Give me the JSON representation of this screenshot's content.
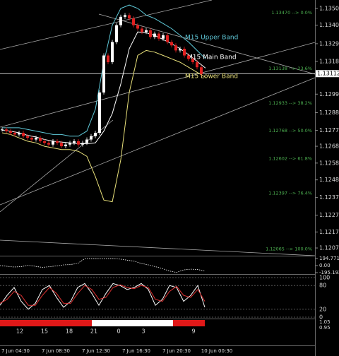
{
  "chart_data": [
    {
      "type": "candlestick",
      "values": [
        1.1278,
        1.1277,
        1.1276,
        1.1275,
        1.1276,
        1.1274,
        1.1273,
        1.1272,
        1.1273,
        1.1271,
        1.127,
        1.1269,
        1.1271,
        1.127,
        1.1268,
        1.1269,
        1.127,
        1.1271,
        1.1269,
        1.127,
        1.1272,
        1.1274,
        1.1276,
        1.13,
        1.1322,
        1.1318,
        1.133,
        1.134,
        1.1345,
        1.1346,
        1.1344,
        1.134,
        1.1338,
        1.1336,
        1.1337,
        1.1333,
        1.1335,
        1.1332,
        1.1334,
        1.133,
        1.1328,
        1.1325,
        1.1326,
        1.1322,
        1.132,
        1.1318,
        1.1315,
        1.1311
      ],
      "series": [
        {
          "name": "M15 Upper Band",
          "color": "#5fc8d8",
          "values": [
            1.1279,
            1.1279,
            1.1279,
            1.1278,
            1.1277,
            1.1276,
            1.1275,
            1.1275,
            1.1274,
            1.1274,
            1.1277,
            1.129,
            1.1318,
            1.134,
            1.135,
            1.1352,
            1.135,
            1.1346,
            1.1344,
            1.1341,
            1.1338,
            1.1334,
            1.133,
            1.1325,
            1.132
          ]
        },
        {
          "name": "M15 Main Band",
          "color": "#ffffff",
          "values": [
            1.12775,
            1.1277,
            1.1276,
            1.12745,
            1.12735,
            1.1272,
            1.1271,
            1.12705,
            1.127,
            1.12695,
            1.12695,
            1.127,
            1.1277,
            1.12875,
            1.1305,
            1.1326,
            1.1336,
            1.13355,
            1.1334,
            1.13315,
            1.1329,
            1.1326,
            1.13225,
            1.13185,
            1.13145
          ]
        },
        {
          "name": "M15 Lower Band",
          "color": "#e8e07a",
          "values": [
            1.1276,
            1.1275,
            1.1273,
            1.1271,
            1.127,
            1.1268,
            1.1267,
            1.1266,
            1.1266,
            1.1265,
            1.1262,
            1.125,
            1.1236,
            1.1235,
            1.126,
            1.13,
            1.1322,
            1.1325,
            1.1324,
            1.1322,
            1.132,
            1.1318,
            1.1315,
            1.1312,
            1.1309
          ]
        }
      ],
      "ylim": [
        1.12029,
        1.1355
      ],
      "yticks": [
        {
          "value": 1.135,
          "label": "1.13500"
        },
        {
          "value": 1.134,
          "label": "1.13400"
        },
        {
          "value": 1.1329,
          "label": "1.13290"
        },
        1.13185,
        {
          "value": 1.1299,
          "label": "1.12990"
        },
        {
          "value": 1.1288,
          "label": "1.12880"
        },
        1.12775,
        {
          "value": 1.1268,
          "label": "1.12680"
        },
        {
          "value": 1.1258,
          "label": "1.12580"
        },
        {
          "value": 1.1248,
          "label": "1.12480"
        },
        1.12375,
        {
          "value": 1.1227,
          "label": "1.12270"
        },
        {
          "value": 1.1217,
          "label": "1.12170"
        },
        1.12075
      ],
      "current_price": 1.13112,
      "fib_levels": [
        {
          "value": 1.1347,
          "label": "1.13470 --> 0.0%"
        },
        {
          "value": 1.13138,
          "label": "1.13138 --> 23.6%"
        },
        {
          "value": 1.12933,
          "label": "1.12933 --> 38.2%"
        },
        {
          "value": 1.12768,
          "label": "1.12768 --> 50.0%"
        },
        {
          "value": 1.12602,
          "label": "1.12602 --> 61.8%"
        },
        {
          "value": 1.12397,
          "label": "1.12397 --> 76.4%"
        },
        {
          "value": 1.12065,
          "label": "1.12065 --> 100.0%"
        }
      ],
      "x_labels": [
        "7 Jun 04:30",
        "7 Jun 08:30",
        "7 Jun 12:30",
        "7 Jun 16:30",
        "7 Jun 20:30",
        "10 Jun 00:30"
      ],
      "hour_labels": [
        "12",
        "15",
        "18",
        "21",
        "0",
        "3",
        "9"
      ],
      "strip_labels": [
        "1.05",
        "0.95"
      ]
    },
    {
      "type": "line",
      "color": "#ffffff",
      "values": [
        0,
        -20,
        -40,
        -30,
        10,
        -20,
        -50,
        -30,
        -10,
        20,
        30,
        60,
        190,
        190,
        190,
        190,
        190,
        180,
        150,
        120,
        60,
        20,
        -30,
        -80,
        -150,
        -190,
        -120,
        -100,
        -110,
        -150
      ],
      "ylim": [
        -195.1929,
        194.7711
      ],
      "yticks": [
        194.7711,
        {
          "value": 0,
          "label": "0.00"
        },
        -195.1929
      ]
    },
    {
      "type": "line",
      "series": [
        {
          "color": "#ffffff",
          "values": [
            30,
            55,
            75,
            40,
            20,
            35,
            70,
            80,
            50,
            25,
            40,
            75,
            85,
            60,
            30,
            60,
            85,
            80,
            70,
            75,
            85,
            70,
            30,
            45,
            80,
            75,
            40,
            55,
            80,
            25
          ]
        },
        {
          "color": "#e03030",
          "values": [
            35,
            45,
            65,
            55,
            30,
            30,
            55,
            75,
            60,
            35,
            35,
            60,
            80,
            70,
            45,
            50,
            75,
            82,
            75,
            72,
            80,
            75,
            45,
            40,
            65,
            78,
            55,
            50,
            70,
            40
          ]
        }
      ],
      "ylim": [
        0,
        100
      ],
      "yticks": [
        100,
        80,
        20,
        0
      ]
    }
  ]
}
